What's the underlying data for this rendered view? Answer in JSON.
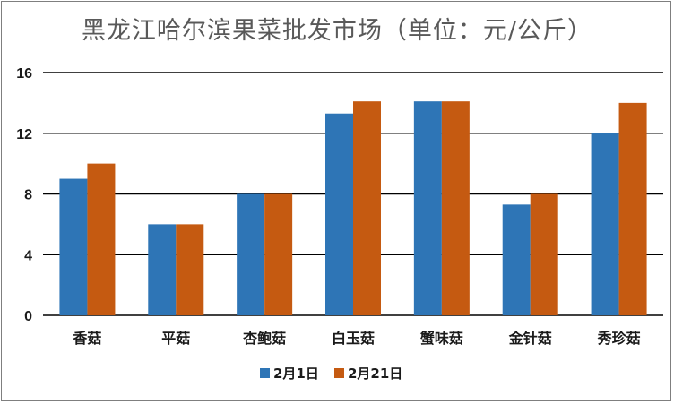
{
  "chart_data": {
    "type": "bar",
    "title": "黑龙江哈尔滨果菜批发市场（单位：元/公斤）",
    "categories": [
      "香菇",
      "平菇",
      "杏鲍菇",
      "白玉菇",
      "蟹味菇",
      "金针菇",
      "秀珍菇"
    ],
    "series": [
      {
        "name": "2月1日",
        "color": "#2e75b6",
        "values": [
          9,
          6,
          8,
          13.3,
          14.1,
          7.3,
          12
        ]
      },
      {
        "name": "2月21日",
        "color": "#c55a11",
        "values": [
          10,
          6,
          8,
          14.1,
          14.1,
          8,
          14
        ]
      }
    ],
    "yticks": [
      "0",
      "4",
      "8",
      "12",
      "16"
    ],
    "ylim": [
      0,
      16
    ],
    "grid": true,
    "legend": "bottom"
  }
}
